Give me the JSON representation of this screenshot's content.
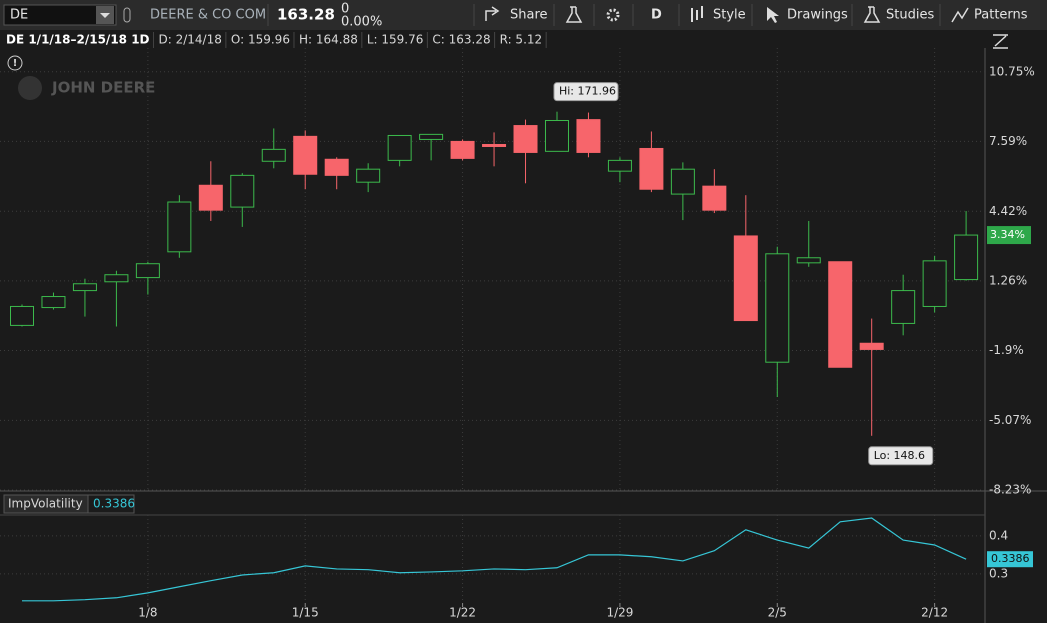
{
  "toolbar": {
    "symbol": "DE",
    "company": "DEERE & CO COM",
    "last": "163.28",
    "change": "0",
    "change_pct": "0.00%",
    "buttons": [
      "Share",
      "D",
      "Style",
      "Drawings",
      "Studies",
      "Patterns"
    ]
  },
  "info_bar": [
    "DE 1/1/18–2/15/18 1D",
    "D: 2/14/18",
    "O: 159.96",
    "H: 164.88",
    "L: 159.76",
    "C: 163.28",
    "R: 5.12"
  ],
  "watermark": "JOHN DEERE",
  "chart_data": [
    {
      "type": "candlestick",
      "series": [
        {
          "up_color": "#3cba4c",
          "down_color": "#f7656b",
          "open": [
            -0.76,
            0.05,
            0.82,
            1.22,
            1.41,
            2.58,
            5.6,
            4.61,
            6.69,
            7.82,
            6.78,
            5.74,
            6.73,
            7.68,
            7.59,
            7.45,
            8.31,
            7.14,
            8.58,
            6.24,
            7.27,
            5.2,
            5.56,
            3.3,
            -2.43,
            2.08,
            2.13,
            -1.57,
            -0.67,
            0.1,
            1.32
          ],
          "high": [
            0.19,
            0.73,
            1.36,
            1.72,
            2.13,
            5.15,
            6.69,
            6.15,
            8.18,
            8.09,
            6.87,
            6.6,
            7.86,
            7.91,
            7.68,
            8.0,
            8.58,
            8.94,
            8.9,
            6.87,
            8.04,
            6.64,
            6.33,
            5.15,
            2.81,
            3.98,
            2.13,
            -0.45,
            1.54,
            2.4,
            4.43
          ],
          "low": [
            -0.81,
            -0.04,
            -0.36,
            -0.81,
            0.64,
            2.31,
            3.98,
            3.71,
            6.37,
            5.42,
            5.42,
            5.29,
            6.46,
            6.73,
            6.73,
            6.46,
            5.69,
            7.14,
            6.87,
            5.74,
            5.29,
            4.02,
            4.34,
            -0.54,
            -4.01,
            1.9,
            -2.66,
            -5.77,
            -1.21,
            -0.17,
            1.27
          ],
          "close": [
            0.1,
            0.55,
            1.13,
            1.54,
            2.04,
            4.84,
            4.47,
            6.05,
            7.23,
            6.1,
            6.05,
            6.33,
            7.86,
            7.91,
            6.82,
            7.36,
            7.09,
            8.54,
            7.09,
            6.73,
            5.42,
            6.33,
            4.47,
            -0.54,
            2.49,
            2.31,
            -2.66,
            -1.85,
            0.82,
            2.17,
            3.34
          ]
        }
      ],
      "ylim": [
        -8.23,
        11.83
      ],
      "yticks": [
        {
          "value": 10.75,
          "label": "10.75%"
        },
        {
          "value": 7.59,
          "label": "7.59%"
        },
        {
          "value": 4.42,
          "label": "4.42%"
        },
        {
          "value": 1.26,
          "label": "1.26%"
        },
        {
          "value": -1.9,
          "label": "-1.9%"
        },
        {
          "value": -5.07,
          "label": "-5.07%"
        },
        {
          "value": -8.23,
          "label": "-8.23%"
        }
      ],
      "last_marker": {
        "value": 3.34,
        "label": "3.34%",
        "color": "#2ea84a"
      },
      "annotations": {
        "high": "Hi: 171.96",
        "low": "Lo: 148.6"
      },
      "grid": true
    },
    {
      "type": "line",
      "title": "ImpVolatility",
      "categories": [
        null,
        null,
        null,
        null,
        "1/8",
        null,
        null,
        null,
        null,
        "1/15",
        null,
        null,
        null,
        null,
        "1/22",
        null,
        null,
        null,
        null,
        "1/29",
        null,
        null,
        null,
        null,
        "2/5",
        null,
        null,
        null,
        null,
        "2/12",
        null
      ],
      "series": [
        {
          "name": "ImpVolatility",
          "color": "#36c6d6",
          "values": [
            0.229,
            0.229,
            0.232,
            0.237,
            0.25,
            0.266,
            0.282,
            0.297,
            0.303,
            0.321,
            0.313,
            0.311,
            0.303,
            0.305,
            0.308,
            0.313,
            0.311,
            0.316,
            0.35,
            0.35,
            0.345,
            0.334,
            0.361,
            0.416,
            0.389,
            0.368,
            0.437,
            0.447,
            0.389,
            0.376,
            0.3386
          ]
        }
      ],
      "legend_value": 0.3386,
      "ylim": [
        0.218,
        0.455
      ],
      "yticks": [
        0.4,
        0.3
      ],
      "grid": true
    }
  ]
}
